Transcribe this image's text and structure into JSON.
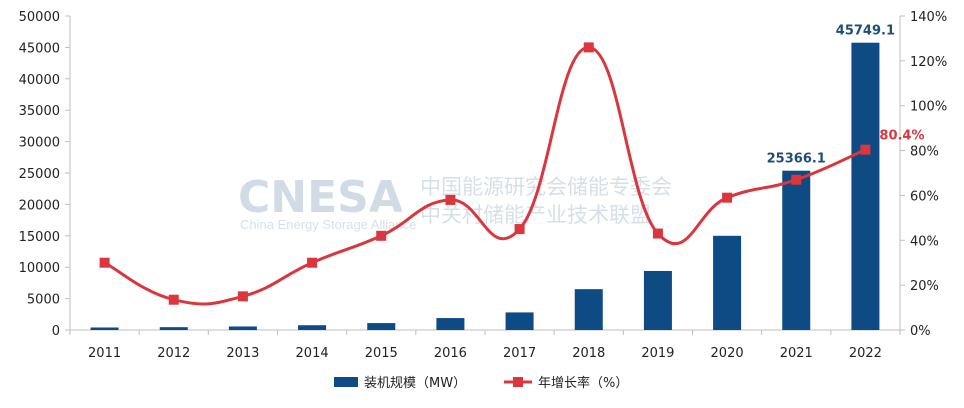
{
  "chart_data": {
    "type": "bar",
    "categories": [
      "2011",
      "2012",
      "2013",
      "2014",
      "2015",
      "2016",
      "2017",
      "2018",
      "2019",
      "2020",
      "2021",
      "2022"
    ],
    "series": [
      {
        "name": "装机规模（MW）",
        "type": "bar",
        "axis": "left",
        "color": "#0e4a84",
        "values": [
          400,
          450,
          560,
          760,
          1100,
          1900,
          2800,
          6500,
          9400,
          15000,
          25366.1,
          45749.1
        ]
      },
      {
        "name": "年增长率（%）",
        "type": "line",
        "axis": "right",
        "color": "#d9363e",
        "values": [
          30,
          13.5,
          15,
          30,
          42,
          58,
          45,
          126,
          43,
          59,
          67,
          80.4
        ]
      }
    ],
    "y_left": {
      "min": 0,
      "max": 50000,
      "ticks": [
        "0",
        "5000",
        "10000",
        "15000",
        "20000",
        "25000",
        "30000",
        "35000",
        "40000",
        "45000",
        "50000"
      ]
    },
    "y_right": {
      "min": 0,
      "max": 140,
      "ticks": [
        "0%",
        "20%",
        "40%",
        "60%",
        "80%",
        "100%",
        "120%",
        "140%"
      ]
    },
    "data_labels": [
      {
        "category_index": 10,
        "series": 0,
        "text": "25366.1",
        "color": "#1f4e79"
      },
      {
        "category_index": 11,
        "series": 0,
        "text": "45749.1",
        "color": "#1f4e79"
      },
      {
        "category_index": 11,
        "series": 1,
        "text": "80.4%",
        "color": "#d9363e"
      }
    ],
    "legend_position": "bottom",
    "grid": false
  },
  "watermark": {
    "logo": "CNESA",
    "english": "China Energy Storage Alliance",
    "line1": "中国能源研究会储能专委会",
    "line2": "中关村储能产业技术联盟"
  }
}
